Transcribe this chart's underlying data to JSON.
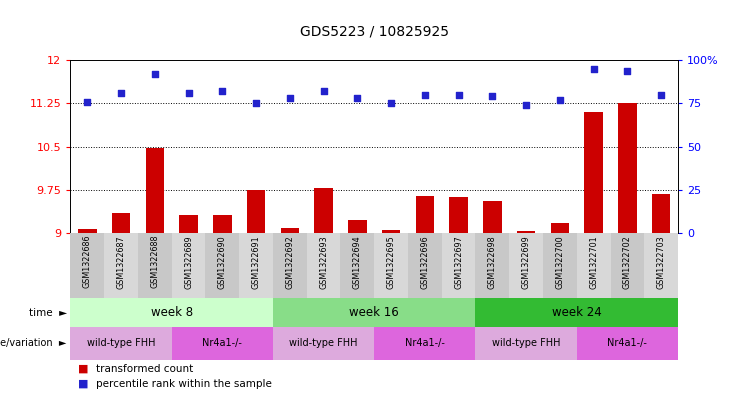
{
  "title": "GDS5223 / 10825925",
  "samples": [
    "GSM1322686",
    "GSM1322687",
    "GSM1322688",
    "GSM1322689",
    "GSM1322690",
    "GSM1322691",
    "GSM1322692",
    "GSM1322693",
    "GSM1322694",
    "GSM1322695",
    "GSM1322696",
    "GSM1322697",
    "GSM1322698",
    "GSM1322699",
    "GSM1322700",
    "GSM1322701",
    "GSM1322702",
    "GSM1322703"
  ],
  "transformed_count": [
    9.07,
    9.35,
    10.48,
    9.32,
    9.31,
    9.75,
    9.08,
    9.79,
    9.22,
    9.05,
    9.65,
    9.62,
    9.55,
    9.04,
    9.18,
    11.1,
    11.25,
    9.68
  ],
  "percentile_rank": [
    76,
    81,
    92,
    81,
    82,
    75,
    78,
    82,
    78,
    75,
    80,
    80,
    79,
    74,
    77,
    95,
    94,
    80
  ],
  "ylim_left": [
    9,
    12
  ],
  "ylim_right": [
    0,
    100
  ],
  "yticks_left": [
    9,
    9.75,
    10.5,
    11.25,
    12
  ],
  "yticks_right": [
    0,
    25,
    50,
    75,
    100
  ],
  "hlines": [
    9.75,
    10.5,
    11.25
  ],
  "bar_color": "#cc0000",
  "scatter_color": "#2222cc",
  "time_groups": [
    {
      "label": "week 8",
      "start": 0,
      "end": 5,
      "color": "#ccffcc"
    },
    {
      "label": "week 16",
      "start": 6,
      "end": 11,
      "color": "#88dd88"
    },
    {
      "label": "week 24",
      "start": 12,
      "end": 17,
      "color": "#33bb33"
    }
  ],
  "genotype_groups": [
    {
      "label": "wild-type FHH",
      "start": 0,
      "end": 2,
      "color": "#ddaadd"
    },
    {
      "label": "Nr4a1-/-",
      "start": 3,
      "end": 5,
      "color": "#dd66dd"
    },
    {
      "label": "wild-type FHH",
      "start": 6,
      "end": 8,
      "color": "#ddaadd"
    },
    {
      "label": "Nr4a1-/-",
      "start": 9,
      "end": 11,
      "color": "#dd66dd"
    },
    {
      "label": "wild-type FHH",
      "start": 12,
      "end": 14,
      "color": "#ddaadd"
    },
    {
      "label": "Nr4a1-/-",
      "start": 15,
      "end": 17,
      "color": "#dd66dd"
    }
  ],
  "legend_labels": [
    "transformed count",
    "percentile rank within the sample"
  ],
  "legend_colors": [
    "#cc0000",
    "#2222cc"
  ],
  "background_color": "#ffffff",
  "xlabels_bg": "#cccccc"
}
